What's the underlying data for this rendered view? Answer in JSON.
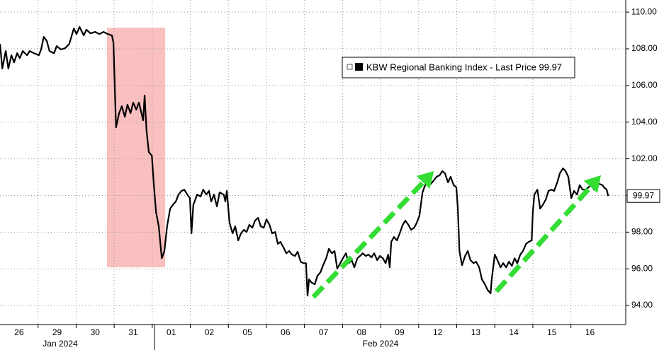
{
  "chart_data": {
    "type": "line",
    "x": [
      0,
      0.06,
      0.15,
      0.22,
      0.3,
      0.37,
      0.45,
      0.52,
      0.6,
      0.71,
      0.78,
      0.89,
      1.02,
      1.08,
      1.15,
      1.23,
      1.3,
      1.42,
      1.49,
      1.6,
      1.71,
      1.82,
      1.94,
      2.01,
      2.09,
      2.2,
      2.27,
      2.38,
      2.5,
      2.61,
      2.72,
      2.83,
      2.94,
      2.98,
      3.02,
      3.05,
      3.13,
      3.2,
      3.28,
      3.35,
      3.43,
      3.5,
      3.58,
      3.65,
      3.76,
      3.8,
      3.85,
      3.91,
      3.99,
      4.04,
      4.1,
      4.17,
      4.25,
      4.32,
      4.39,
      4.47,
      4.54,
      4.62,
      4.69,
      4.77,
      4.84,
      4.92,
      4.99,
      5.03,
      5.08,
      5.18,
      5.27,
      5.34,
      5.42,
      5.49,
      5.55,
      5.62,
      5.7,
      5.77,
      5.88,
      5.92,
      5.96,
      6.03,
      6.11,
      6.18,
      6.26,
      6.33,
      6.41,
      6.48,
      6.55,
      6.63,
      6.7,
      6.78,
      6.85,
      6.93,
      7.0,
      7.08,
      7.15,
      7.23,
      7.3,
      7.37,
      7.45,
      7.52,
      7.6,
      7.67,
      7.75,
      7.82,
      7.9,
      7.97,
      8.04,
      8.08,
      8.12,
      8.19,
      8.27,
      8.34,
      8.42,
      8.49,
      8.57,
      8.64,
      8.72,
      8.79,
      8.86,
      8.94,
      9.01,
      9.09,
      9.16,
      9.24,
      9.31,
      9.39,
      9.46,
      9.53,
      9.61,
      9.68,
      9.76,
      9.83,
      9.91,
      9.98,
      10.06,
      10.13,
      10.2,
      10.24,
      10.28,
      10.35,
      10.43,
      10.5,
      10.58,
      10.65,
      10.73,
      10.8,
      10.88,
      10.95,
      11.02,
      11.1,
      11.17,
      11.25,
      11.32,
      11.4,
      11.47,
      11.55,
      11.62,
      11.69,
      11.77,
      11.84,
      11.92,
      11.99,
      12.03,
      12.07,
      12.14,
      12.22,
      12.29,
      12.36,
      12.44,
      12.51,
      12.59,
      12.66,
      12.74,
      12.81,
      12.89,
      12.92,
      13.0,
      13.07,
      13.15,
      13.22,
      13.3,
      13.37,
      13.45,
      13.52,
      13.59,
      13.67,
      13.74,
      13.82,
      13.89,
      13.97,
      14.0,
      14.04,
      14.12,
      14.19,
      14.26,
      14.34,
      14.41,
      14.49,
      14.56,
      14.64,
      14.71,
      14.79,
      14.86,
      14.93,
      15.01,
      15.08,
      15.16,
      15.23,
      15.31,
      15.38,
      15.46,
      15.53,
      15.61,
      15.68,
      15.75,
      15.83,
      15.87,
      15.94,
      15.98
    ],
    "series": [
      {
        "name": "KBW Regional Banking Index - Last Price 99.97",
        "color": "#000000",
        "values": [
          108.27,
          106.92,
          107.88,
          106.92,
          107.65,
          107.26,
          107.76,
          107.49,
          107.88,
          107.65,
          107.88,
          107.76,
          107.65,
          107.96,
          108.65,
          108.42,
          107.88,
          107.76,
          108.15,
          107.96,
          108.03,
          108.27,
          109.11,
          108.8,
          109.19,
          108.73,
          109.04,
          108.84,
          108.92,
          108.8,
          108.92,
          108.8,
          108.73,
          108.34,
          105.64,
          103.72,
          104.49,
          104.87,
          104.29,
          104.95,
          104.49,
          105.07,
          104.68,
          105.07,
          104.1,
          105.45,
          103.52,
          102.37,
          102.17,
          100.63,
          99.09,
          98.32,
          96.58,
          96.97,
          98.32,
          99.28,
          99.48,
          99.67,
          100.05,
          100.25,
          100.32,
          100.05,
          99.86,
          97.93,
          99.48,
          100.05,
          99.94,
          100.32,
          100.05,
          100.25,
          99.67,
          100.05,
          99.4,
          100.17,
          100.05,
          99.67,
          100.25,
          98.51,
          97.93,
          98.32,
          97.55,
          97.93,
          98.13,
          98.01,
          98.4,
          98.24,
          98.63,
          98.78,
          98.32,
          98.24,
          98.7,
          98.4,
          97.93,
          98.01,
          97.36,
          97.47,
          97.16,
          96.85,
          96.97,
          96.78,
          96.7,
          96.93,
          96.39,
          96.31,
          96.31,
          94.54,
          95.43,
          95.24,
          95.16,
          95.62,
          95.81,
          96.2,
          96.58,
          97.09,
          96.85,
          96.97,
          96.01,
          96.31,
          96.58,
          96.85,
          96.31,
          96.47,
          96.08,
          96.58,
          96.7,
          96.85,
          96.7,
          96.78,
          96.62,
          96.85,
          96.47,
          96.7,
          96.58,
          96.31,
          96.78,
          96.08,
          97.47,
          97.74,
          97.55,
          97.93,
          98.4,
          98.63,
          98.4,
          98.13,
          98.24,
          98.51,
          98.9,
          100.17,
          100.56,
          100.71,
          100.63,
          100.83,
          101.02,
          101.1,
          101.33,
          101.21,
          100.71,
          101.02,
          100.56,
          100.44,
          99.28,
          96.97,
          96.2,
          96.7,
          96.97,
          96.47,
          96.31,
          96.39,
          96.08,
          95.43,
          95.16,
          94.85,
          94.66,
          95.43,
          96.78,
          96.47,
          96.08,
          96.31,
          96.08,
          96.39,
          96.16,
          96.58,
          96.31,
          96.78,
          96.97,
          97.36,
          97.47,
          97.55,
          99.09,
          100.05,
          100.32,
          99.28,
          99.48,
          99.78,
          100.25,
          100.32,
          100.25,
          100.71,
          101.21,
          101.48,
          101.33,
          101.02,
          99.86,
          100.25,
          100.05,
          100.56,
          100.32,
          100.32,
          100.44,
          100.56,
          100.32,
          100.71,
          100.63,
          100.56,
          100.44,
          100.32,
          99.97
        ]
      }
    ],
    "last_value": 99.97,
    "xlim": [
      0,
      16.44
    ],
    "xticks": [
      {
        "value": 0.5,
        "label": "26"
      },
      {
        "value": 1.5,
        "label": "29"
      },
      {
        "value": 2.5,
        "label": "30"
      },
      {
        "value": 3.5,
        "label": "31"
      },
      {
        "value": 4.5,
        "label": "01"
      },
      {
        "value": 5.5,
        "label": "02"
      },
      {
        "value": 6.5,
        "label": "05"
      },
      {
        "value": 7.5,
        "label": "06"
      },
      {
        "value": 8.5,
        "label": "07"
      },
      {
        "value": 9.5,
        "label": "08"
      },
      {
        "value": 10.5,
        "label": "09"
      },
      {
        "value": 11.5,
        "label": "12"
      },
      {
        "value": 12.5,
        "label": "13"
      },
      {
        "value": 13.5,
        "label": "14"
      },
      {
        "value": 14.5,
        "label": "15"
      },
      {
        "value": 15.5,
        "label": "16"
      }
    ],
    "month_labels": [
      "Jan 2024",
      "Feb 2024"
    ],
    "ylim": [
      93.0,
      110.66
    ],
    "yticks": [
      {
        "value": 94,
        "label": "94.00"
      },
      {
        "value": 96,
        "label": "96.00"
      },
      {
        "value": 98,
        "label": "98.00"
      },
      {
        "value": 100,
        "label": "100.00"
      },
      {
        "value": 102,
        "label": "102.00"
      },
      {
        "value": 104,
        "label": "104.00"
      },
      {
        "value": 106,
        "label": "106.00"
      },
      {
        "value": 108,
        "label": "108.00"
      },
      {
        "value": 110,
        "label": "110.00"
      }
    ],
    "grid": true,
    "highlight": {
      "x": [
        2.81,
        4.34
      ],
      "y": [
        96.08,
        109.15
      ],
      "color": "#f9c0bf"
    },
    "arrows": [
      {
        "x": [
          8.23,
          11.4
        ],
        "y": [
          94.46,
          101.33
        ]
      },
      {
        "x": [
          13.04,
          15.79
        ],
        "y": [
          94.77,
          101.1
        ]
      }
    ],
    "arrow_color": "#33dd33"
  }
}
